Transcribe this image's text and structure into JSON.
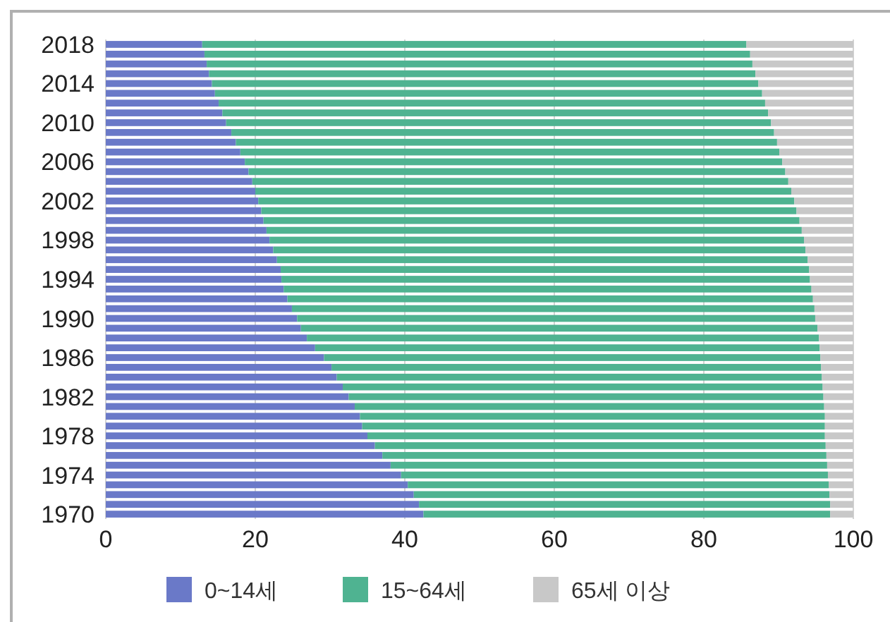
{
  "chart_data": {
    "type": "bar",
    "orientation": "horizontal",
    "stacked": true,
    "categories": [
      "2018",
      null,
      null,
      null,
      "2014",
      null,
      null,
      null,
      "2010",
      null,
      null,
      null,
      "2006",
      null,
      null,
      null,
      "2002",
      null,
      null,
      null,
      "1998",
      null,
      null,
      null,
      "1994",
      null,
      null,
      null,
      "1990",
      null,
      null,
      null,
      "1986",
      null,
      null,
      null,
      "1982",
      null,
      null,
      null,
      "1978",
      null,
      null,
      null,
      "1974",
      null,
      null,
      null,
      "1970"
    ],
    "series": [
      {
        "name": "0~14세",
        "color": "#6a79c8",
        "values": [
          12.9,
          13.2,
          13.5,
          13.8,
          14.2,
          14.6,
          15.1,
          15.6,
          16.1,
          16.8,
          17.4,
          18.0,
          18.6,
          19.1,
          19.6,
          20.0,
          20.4,
          20.8,
          21.1,
          21.5,
          21.9,
          22.4,
          22.9,
          23.4,
          23.5,
          23.8,
          24.3,
          24.9,
          25.6,
          26.1,
          26.9,
          28.0,
          29.2,
          30.2,
          30.9,
          31.7,
          32.5,
          33.3,
          34.0,
          34.3,
          35.0,
          36.0,
          37.0,
          38.1,
          39.5,
          40.4,
          41.2,
          41.9,
          42.5
        ]
      },
      {
        "name": "15~64세",
        "color": "#4fb391",
        "values": [
          72.8,
          73.0,
          73.0,
          73.1,
          73.1,
          73.2,
          73.1,
          73.0,
          72.9,
          72.6,
          72.4,
          72.1,
          71.9,
          71.8,
          71.7,
          71.7,
          71.7,
          71.6,
          71.7,
          71.6,
          71.5,
          71.2,
          71.0,
          70.7,
          70.7,
          70.6,
          70.3,
          69.9,
          69.3,
          69.1,
          68.5,
          67.5,
          66.4,
          65.5,
          64.9,
          64.2,
          63.5,
          62.8,
          62.2,
          61.9,
          61.2,
          60.3,
          59.4,
          58.4,
          57.1,
          56.3,
          55.6,
          55.0,
          54.4
        ]
      },
      {
        "name": "65세 이상",
        "color": "#c8c8c8",
        "values": [
          14.3,
          13.8,
          13.5,
          13.1,
          12.7,
          12.2,
          11.8,
          11.4,
          11.0,
          10.6,
          10.2,
          9.9,
          9.5,
          9.1,
          8.7,
          8.3,
          7.9,
          7.6,
          7.2,
          6.9,
          6.6,
          6.4,
          6.1,
          5.9,
          5.8,
          5.6,
          5.4,
          5.2,
          5.1,
          4.8,
          4.6,
          4.5,
          4.4,
          4.3,
          4.2,
          4.1,
          4.0,
          3.9,
          3.8,
          3.8,
          3.8,
          3.7,
          3.6,
          3.5,
          3.4,
          3.3,
          3.2,
          3.1,
          3.1
        ]
      }
    ],
    "xlim": [
      0,
      100
    ],
    "xticks": [
      0,
      20,
      40,
      60,
      80,
      100
    ],
    "grid": "x",
    "legend": "bottom"
  }
}
